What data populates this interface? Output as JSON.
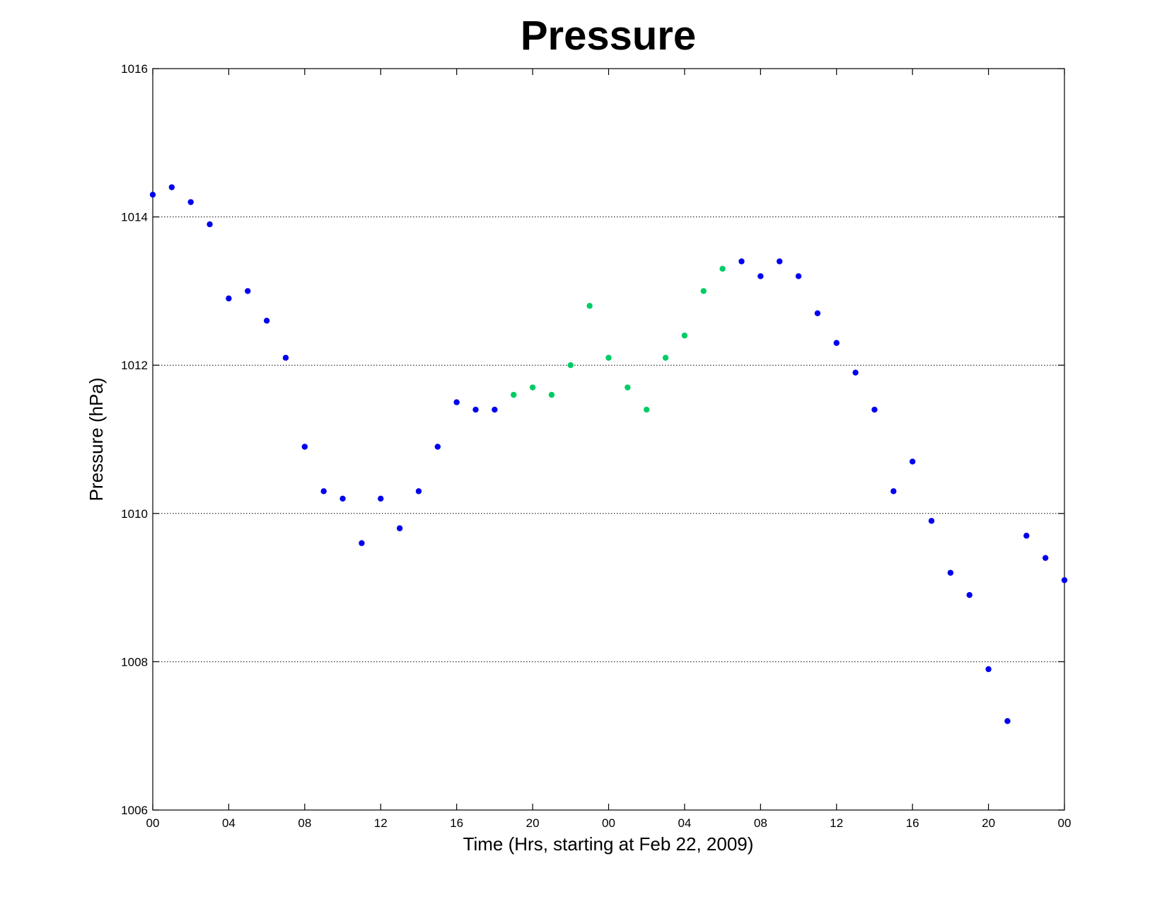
{
  "chart_data": {
    "type": "scatter",
    "title": "Pressure",
    "xlabel": "Time (Hrs, starting at Feb 22, 2009)",
    "ylabel": "Pressure (hPa)",
    "xlim": [
      0,
      48
    ],
    "ylim": [
      1006,
      1016
    ],
    "x_ticks": [
      0,
      4,
      8,
      12,
      16,
      20,
      24,
      28,
      32,
      36,
      40,
      44,
      48
    ],
    "x_tick_labels": [
      "00",
      "04",
      "08",
      "12",
      "16",
      "20",
      "00",
      "04",
      "08",
      "12",
      "16",
      "20",
      "00"
    ],
    "y_ticks": [
      1006,
      1008,
      1010,
      1012,
      1014,
      1016
    ],
    "y_tick_labels": [
      "1006",
      "1008",
      "1010",
      "1012",
      "1014",
      "1016"
    ],
    "grid": "horizontal dotted at y ticks",
    "series": [
      {
        "color": "#0000ee",
        "x": [
          0,
          1,
          2,
          3,
          4,
          5,
          6,
          7,
          8,
          9,
          10,
          11,
          12,
          13,
          14,
          15,
          16,
          17,
          18,
          31,
          32,
          33,
          34,
          35,
          36,
          37,
          38,
          39,
          40,
          41,
          42,
          43,
          44,
          45,
          46,
          47,
          48
        ],
        "y": [
          1014.3,
          1014.4,
          1014.2,
          1013.9,
          1012.9,
          1013.0,
          1012.6,
          1012.1,
          1010.9,
          1010.3,
          1010.2,
          1009.6,
          1010.2,
          1009.8,
          1010.3,
          1010.9,
          1011.5,
          1011.4,
          1011.4,
          1013.4,
          1013.2,
          1013.4,
          1013.2,
          1012.7,
          1012.3,
          1011.9,
          1011.4,
          1010.3,
          1010.7,
          1009.9,
          1009.2,
          1008.9,
          1007.9,
          1007.2,
          1009.7,
          1009.4,
          1009.1
        ]
      },
      {
        "color": "#00cc66",
        "x": [
          19,
          20,
          21,
          22,
          23,
          24,
          25,
          26,
          27,
          28,
          29,
          30
        ],
        "y": [
          1011.6,
          1011.7,
          1011.6,
          1012.0,
          1012.8,
          1012.1,
          1011.7,
          1011.4,
          1012.1,
          1012.4,
          1013.0,
          1013.3
        ]
      }
    ]
  }
}
